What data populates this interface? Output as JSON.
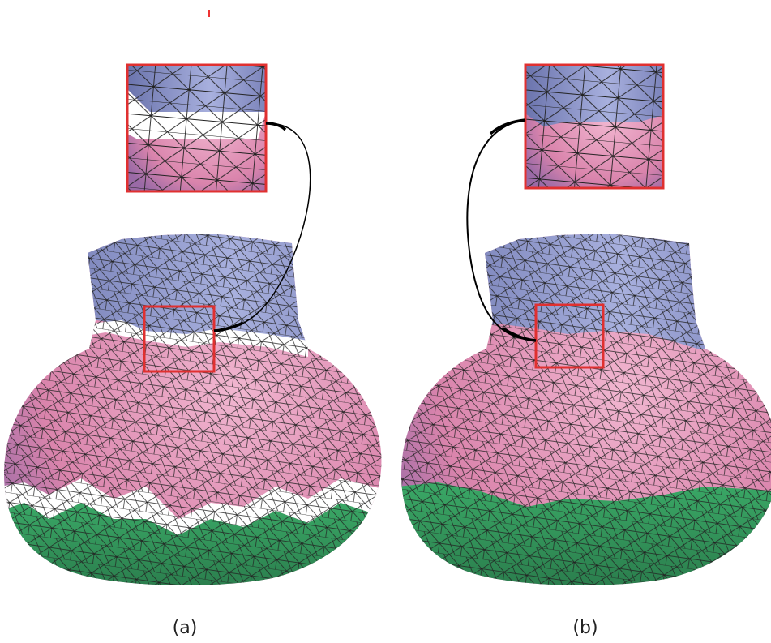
{
  "labels": [
    "(a)",
    "(b)"
  ]
}
